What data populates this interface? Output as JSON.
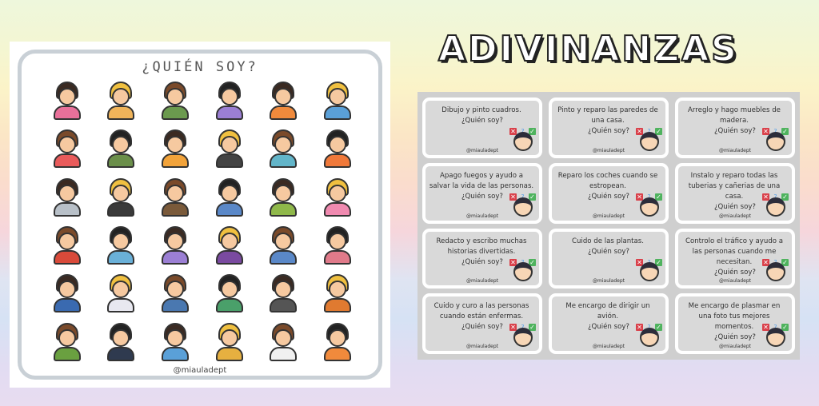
{
  "left_panel": {
    "title": "¿QUIÉN SOY?",
    "footer": "@miauladept",
    "avatar_colors": [
      "#e9709a",
      "#f0b45a",
      "#6b9a4e",
      "#9b7fd4",
      "#f08a3c",
      "#5aa0d8",
      "#e95b5b",
      "#6b8f4a",
      "#f2a33a",
      "#444444",
      "#62b5c9",
      "#f0793a",
      "#b8c0c8",
      "#3a3a3a",
      "#7a5a3a",
      "#5a88c8",
      "#8fb84a",
      "#f08ab0",
      "#d94a3a",
      "#6ab0d8",
      "#9b7fd4",
      "#7a4aa0",
      "#5a88c8",
      "#e07a8a",
      "#3a6ab0",
      "#e8e8f0",
      "#4a78b0",
      "#4aa06a",
      "#555555",
      "#e07a30",
      "#6aa040",
      "#2f3a4f",
      "#5aa0d8",
      "#e6b040",
      "#f0f0f0",
      "#f08a3c"
    ]
  },
  "heading": "ADIVINANZAS",
  "cards": [
    {
      "text": "Dibujo y pinto cuadros.",
      "question": "¿Quién soy?",
      "brand": "@miauladept"
    },
    {
      "text": "Pinto y reparo las paredes de una casa.",
      "question": "¿Quién soy?",
      "brand": "@miauladept"
    },
    {
      "text": "Arreglo y hago muebles de madera.",
      "question": "¿Quién soy?",
      "brand": "@miauladept"
    },
    {
      "text": "Apago fuegos y ayudo a salvar la vida de las personas.",
      "question": "¿Quién soy?",
      "brand": "@miauladept"
    },
    {
      "text": "Reparo los coches cuando se estropean.",
      "question": "¿Quién soy?",
      "brand": "@miauladept"
    },
    {
      "text": "Instalo y reparo todas las tuberias y cañerias de una casa.",
      "question": "¿Quién soy?",
      "brand": "@miauladept"
    },
    {
      "text": "Redacto y escribo muchas historias divertidas.",
      "question": "¿Quién soy?",
      "brand": "@miauladept"
    },
    {
      "text": "Cuido de las plantas.",
      "question": "¿Quién soy?",
      "brand": "@miauladept"
    },
    {
      "text": "Controlo el tráfico y ayudo a las personas cuando me necesitan.",
      "question": "¿Quién soy?",
      "brand": "@miauladept"
    },
    {
      "text": "Cuido y curo a las personas cuando están enfermas.",
      "question": "¿Quién soy?",
      "brand": "@miauladept"
    },
    {
      "text": "Me encargo de dirigir un avión.",
      "question": "¿Quién soy?",
      "brand": "@miauladept"
    },
    {
      "text": "Me encargo de plasmar en una foto tus mejores momentos.",
      "question": "¿Quién soy?",
      "brand": "@miauladept"
    }
  ],
  "marks": {
    "wrong": "✕",
    "unsure": "?",
    "right": "✓"
  }
}
